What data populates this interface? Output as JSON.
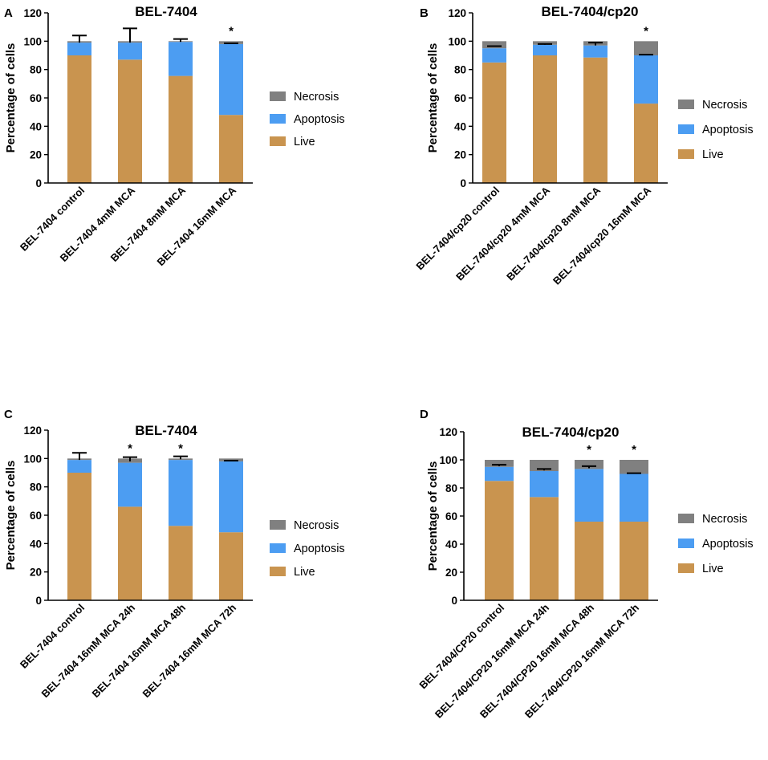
{
  "figure": {
    "panels": [
      "A",
      "B",
      "C",
      "D"
    ]
  },
  "colors": {
    "Live": "#c9944f",
    "Apoptosis": "#4c9df2",
    "Necrosis": "#808080",
    "error_bar": "#000000"
  },
  "chart_data": [
    {
      "panel": "A",
      "type": "bar",
      "stacked": true,
      "title": "BEL-7404",
      "ylabel": "Percentage of cells",
      "xlabel": "",
      "ylim": [
        0,
        120
      ],
      "yticks": [
        0,
        20,
        40,
        60,
        80,
        100,
        120
      ],
      "categories": [
        "BEL-7404 control",
        "BEL-7404 4mM MCA",
        "BEL-7404 8mM MCA",
        "BEL-7404 16mM MCA"
      ],
      "series": [
        {
          "name": "Live",
          "values": [
            90,
            87,
            75.5,
            48
          ]
        },
        {
          "name": "Apoptosis",
          "values": [
            9,
            12,
            24,
            50
          ]
        },
        {
          "name": "Necrosis",
          "values": [
            1,
            1,
            0.5,
            2
          ]
        }
      ],
      "error_bars": [
        {
          "center": 99,
          "upper": 104
        },
        {
          "center": 99,
          "upper": 109
        },
        {
          "center": 99.5,
          "upper": 101.5
        },
        {
          "center": 98,
          "upper": 98.5
        }
      ],
      "significance": [
        "",
        "",
        "",
        "*"
      ],
      "legend": {
        "entries": [
          "Necrosis",
          "Apoptosis",
          "Live"
        ],
        "position": "right"
      }
    },
    {
      "panel": "B",
      "type": "bar",
      "stacked": true,
      "title": "BEL-7404/cp20",
      "ylabel": "Percentage of cells",
      "xlabel": "",
      "ylim": [
        0,
        120
      ],
      "yticks": [
        0,
        20,
        40,
        60,
        80,
        100,
        120
      ],
      "categories": [
        "BEL-7404/cp20 control",
        "BEL-7404/cp20 4mM MCA",
        "BEL-7404/cp20 8mM MCA",
        "BEL-7404/cp20 16mM MCA"
      ],
      "series": [
        {
          "name": "Live",
          "values": [
            85,
            90,
            88.5,
            56
          ]
        },
        {
          "name": "Apoptosis",
          "values": [
            10,
            7.5,
            8.5,
            34
          ]
        },
        {
          "name": "Necrosis",
          "values": [
            5,
            2.5,
            3,
            10
          ]
        }
      ],
      "error_bars": [
        {
          "center": 96,
          "upper": 96.5
        },
        {
          "center": 97.5,
          "upper": 98
        },
        {
          "center": 97,
          "upper": 99
        },
        {
          "center": 90.5,
          "upper": 90.5
        }
      ],
      "significance": [
        "",
        "",
        "",
        "*"
      ],
      "legend": {
        "entries": [
          "Necrosis",
          "Apoptosis",
          "Live"
        ],
        "position": "right"
      }
    },
    {
      "panel": "C",
      "type": "bar",
      "stacked": true,
      "title": "BEL-7404",
      "ylabel": "Percentage of cells",
      "xlabel": "",
      "ylim": [
        0,
        120
      ],
      "yticks": [
        0,
        20,
        40,
        60,
        80,
        100,
        120
      ],
      "categories": [
        "BEL-7404 control",
        "BEL-7404 16mM MCA 24h",
        "BEL-7404 16mM MCA 48h",
        "BEL-7404 16mM MCA 72h"
      ],
      "series": [
        {
          "name": "Live",
          "values": [
            90,
            66,
            52.5,
            48
          ]
        },
        {
          "name": "Apoptosis",
          "values": [
            9,
            31,
            46.5,
            50
          ]
        },
        {
          "name": "Necrosis",
          "values": [
            1,
            3,
            1,
            2
          ]
        }
      ],
      "error_bars": [
        {
          "center": 99,
          "upper": 104
        },
        {
          "center": 98,
          "upper": 101
        },
        {
          "center": 99.5,
          "upper": 101.5
        },
        {
          "center": 98,
          "upper": 98.5
        }
      ],
      "significance": [
        "",
        "*",
        "*",
        ""
      ],
      "legend": {
        "entries": [
          "Necrosis",
          "Apoptosis",
          "Live"
        ],
        "position": "right"
      }
    },
    {
      "panel": "D",
      "type": "bar",
      "stacked": true,
      "title": "BEL-7404/cp20",
      "ylabel": "Percentage of cells",
      "xlabel": "",
      "ylim": [
        0,
        120
      ],
      "yticks": [
        0,
        20,
        40,
        60,
        80,
        100,
        120
      ],
      "categories": [
        "BEL-7404/CP20 control",
        "BEL-7404/CP20 16mM MCA 24h",
        "BEL-7404/CP20 16mM MCA 48h",
        "BEL-7404/CP20 16mM MCA 72h"
      ],
      "series": [
        {
          "name": "Live",
          "values": [
            85,
            73.5,
            56,
            56
          ]
        },
        {
          "name": "Apoptosis",
          "values": [
            10,
            18.5,
            37.5,
            34
          ]
        },
        {
          "name": "Necrosis",
          "values": [
            5,
            8,
            6.5,
            10
          ]
        }
      ],
      "error_bars": [
        {
          "center": 95.5,
          "upper": 96.5
        },
        {
          "center": 92.5,
          "upper": 93.5
        },
        {
          "center": 94,
          "upper": 95.5
        },
        {
          "center": 90.5,
          "upper": 90.5
        }
      ],
      "significance": [
        "",
        "",
        "*",
        "*"
      ],
      "legend": {
        "entries": [
          "Necrosis",
          "Apoptosis",
          "Live"
        ],
        "position": "right"
      }
    }
  ]
}
